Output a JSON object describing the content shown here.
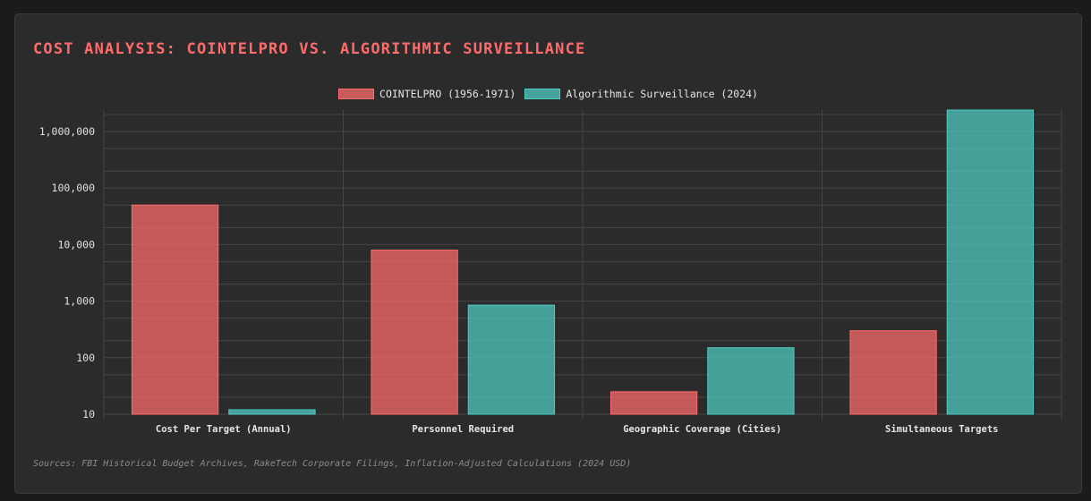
{
  "chart_data": {
    "type": "bar",
    "title": "COST ANALYSIS: COINTELPRO VS. ALGORITHMIC SURVEILLANCE",
    "categories": [
      "Cost Per Target (Annual)",
      "Personnel Required",
      "Geographic Coverage (Cities)",
      "Simultaneous Targets"
    ],
    "series": [
      {
        "name": "COINTELPRO (1956-1971)",
        "color": "#ff6b6b",
        "values": [
          50000,
          8000,
          25,
          300
        ]
      },
      {
        "name": "Algorithmic Surveillance (2024)",
        "color": "#4ecdc4",
        "values": [
          12,
          850,
          150,
          2400000
        ]
      }
    ],
    "y_scale": "log",
    "ylim": [
      10,
      2400000
    ],
    "y_ticks": [
      10,
      100,
      1000,
      10000,
      100000,
      1000000
    ],
    "y_tick_labels": [
      "10",
      "100",
      "1,000",
      "10,000",
      "100,000",
      "1,000,000"
    ],
    "grid": true,
    "legend_position": "top-center",
    "xlabel": "",
    "ylabel": ""
  },
  "footer": {
    "source": "Sources: FBI Historical Budget Archives, RakeTech Corporate Filings, Inflation-Adjusted Calculations (2024 USD)"
  },
  "colors": {
    "background": "#2b2b2b",
    "title": "#ff6b6b",
    "grid": "#464646"
  }
}
